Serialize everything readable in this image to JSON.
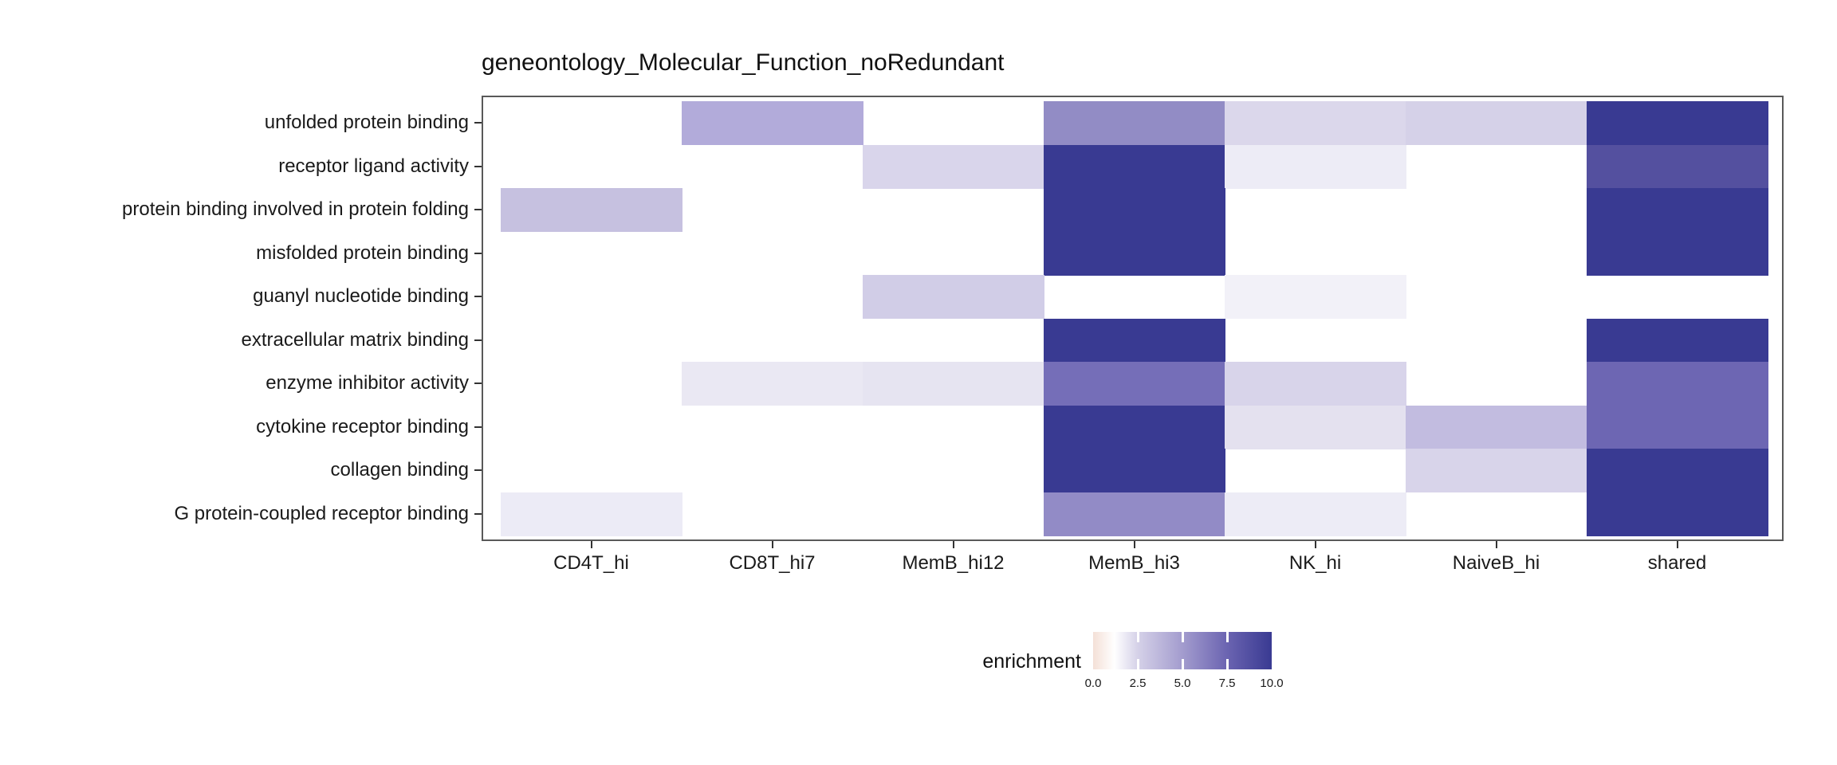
{
  "figure": {
    "title": "geneontology_Molecular_Function_noRedundant"
  },
  "chart_data": {
    "type": "heatmap",
    "title": "geneontology_Molecular_Function_noRedundant",
    "x_categories": [
      "CD4T_hi",
      "CD8T_hi7",
      "MemB_hi12",
      "MemB_hi3",
      "NK_hi",
      "NaiveB_hi",
      "shared"
    ],
    "y_categories": [
      "unfolded protein binding",
      "receptor ligand activity",
      "protein binding involved in protein folding",
      "misfolded protein binding",
      "guanyl nucleotide binding",
      "extracellular matrix binding",
      "enzyme inhibitor activity",
      "cytokine receptor binding",
      "collagen binding",
      "G protein-coupled receptor binding"
    ],
    "legend": {
      "title": "enrichment",
      "ticks": [
        "0.0",
        "2.5",
        "5.0",
        "7.5",
        "10.0"
      ],
      "range": [
        0,
        10
      ],
      "gradient_stops": [
        {
          "pos": 0.0,
          "color": "#f4e0d7"
        },
        {
          "pos": 0.12,
          "color": "#ffffff"
        },
        {
          "pos": 0.25,
          "color": "#d5d1e8"
        },
        {
          "pos": 0.5,
          "color": "#a39cce"
        },
        {
          "pos": 0.75,
          "color": "#6b64b1"
        },
        {
          "pos": 1.0,
          "color": "#393a92"
        }
      ]
    },
    "cells": [
      {
        "y": "unfolded protein binding",
        "x": "CD8T_hi7",
        "value": 4.6,
        "color": "#b2abda"
      },
      {
        "y": "unfolded protein binding",
        "x": "MemB_hi3",
        "value": 5.9,
        "color": "#928cc5"
      },
      {
        "y": "unfolded protein binding",
        "x": "NK_hi",
        "value": 2.6,
        "color": "#dbd7eb"
      },
      {
        "y": "unfolded protein binding",
        "x": "NaiveB_hi",
        "value": 2.8,
        "color": "#d5d1e8"
      },
      {
        "y": "unfolded protein binding",
        "x": "shared",
        "value": 10.0,
        "color": "#393a92"
      },
      {
        "y": "receptor ligand activity",
        "x": "MemB_hi12",
        "value": 2.6,
        "color": "#d9d5eb"
      },
      {
        "y": "receptor ligand activity",
        "x": "MemB_hi3",
        "value": 10.0,
        "color": "#393a92"
      },
      {
        "y": "receptor ligand activity",
        "x": "NK_hi",
        "value": 1.6,
        "color": "#edecf6"
      },
      {
        "y": "receptor ligand activity",
        "x": "shared",
        "value": 8.5,
        "color": "#54509f"
      },
      {
        "y": "protein binding involved in protein folding",
        "x": "CD4T_hi",
        "value": 3.7,
        "color": "#c6c1e0"
      },
      {
        "y": "protein binding involved in protein folding",
        "x": "MemB_hi3",
        "value": 10.0,
        "color": "#393a92"
      },
      {
        "y": "protein binding involved in protein folding",
        "x": "shared",
        "value": 10.0,
        "color": "#393a92"
      },
      {
        "y": "misfolded protein binding",
        "x": "MemB_hi3",
        "value": 10.0,
        "color": "#393a92"
      },
      {
        "y": "misfolded protein binding",
        "x": "shared",
        "value": 10.0,
        "color": "#393a92"
      },
      {
        "y": "guanyl nucleotide binding",
        "x": "MemB_hi12",
        "value": 3.0,
        "color": "#d1cde7"
      },
      {
        "y": "guanyl nucleotide binding",
        "x": "NK_hi",
        "value": 1.4,
        "color": "#f2f1f8"
      },
      {
        "y": "extracellular matrix binding",
        "x": "MemB_hi3",
        "value": 10.0,
        "color": "#393a92"
      },
      {
        "y": "extracellular matrix binding",
        "x": "shared",
        "value": 10.0,
        "color": "#393a92"
      },
      {
        "y": "enzyme inhibitor activity",
        "x": "CD8T_hi7",
        "value": 1.8,
        "color": "#eae8f3"
      },
      {
        "y": "enzyme inhibitor activity",
        "x": "MemB_hi12",
        "value": 1.9,
        "color": "#e6e4f1"
      },
      {
        "y": "enzyme inhibitor activity",
        "x": "MemB_hi3",
        "value": 7.0,
        "color": "#756eb8"
      },
      {
        "y": "enzyme inhibitor activity",
        "x": "NK_hi",
        "value": 2.7,
        "color": "#d8d4ea"
      },
      {
        "y": "enzyme inhibitor activity",
        "x": "shared",
        "value": 7.4,
        "color": "#6d66b3"
      },
      {
        "y": "cytokine receptor binding",
        "x": "MemB_hi3",
        "value": 10.0,
        "color": "#393a92"
      },
      {
        "y": "cytokine receptor binding",
        "x": "NK_hi",
        "value": 2.1,
        "color": "#e4e1ef"
      },
      {
        "y": "cytokine receptor binding",
        "x": "NaiveB_hi",
        "value": 3.9,
        "color": "#c2bce0"
      },
      {
        "y": "cytokine receptor binding",
        "x": "shared",
        "value": 7.4,
        "color": "#6d66b3"
      },
      {
        "y": "collagen binding",
        "x": "MemB_hi3",
        "value": 10.0,
        "color": "#393a92"
      },
      {
        "y": "collagen binding",
        "x": "NaiveB_hi",
        "value": 2.7,
        "color": "#d8d4ea"
      },
      {
        "y": "collagen binding",
        "x": "shared",
        "value": 10.0,
        "color": "#393a92"
      },
      {
        "y": "G protein-coupled receptor binding",
        "x": "CD4T_hi",
        "value": 1.6,
        "color": "#ecebf6"
      },
      {
        "y": "G protein-coupled receptor binding",
        "x": "MemB_hi3",
        "value": 6.0,
        "color": "#928bc6"
      },
      {
        "y": "G protein-coupled receptor binding",
        "x": "NK_hi",
        "value": 1.6,
        "color": "#edecf6"
      },
      {
        "y": "G protein-coupled receptor binding",
        "x": "shared",
        "value": 10.0,
        "color": "#393a92"
      }
    ]
  }
}
